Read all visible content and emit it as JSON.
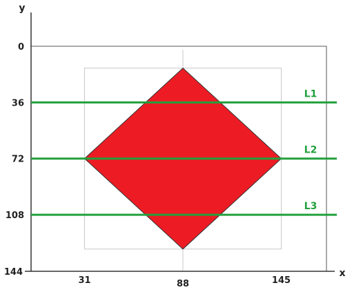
{
  "axes": {
    "x_label": "x",
    "y_label": "y"
  },
  "y_ticks": [
    {
      "value": 0,
      "label": "0"
    },
    {
      "value": 36,
      "label": "36"
    },
    {
      "value": 72,
      "label": "72"
    },
    {
      "value": 108,
      "label": "108"
    },
    {
      "value": 144,
      "label": "144"
    }
  ],
  "x_ticks": [
    {
      "value": 31,
      "label": "31"
    },
    {
      "value": 88,
      "label": "88"
    },
    {
      "value": 145,
      "label": "145"
    }
  ],
  "diamond": {
    "vertices": [
      {
        "x": 88,
        "y": 14
      },
      {
        "x": 145,
        "y": 72
      },
      {
        "x": 88,
        "y": 130
      },
      {
        "x": 31,
        "y": 72
      }
    ],
    "fill": "#ed1c24",
    "stroke": "#333333"
  },
  "bounding_box": {
    "x_min": 31,
    "x_max": 145,
    "y_min": 14,
    "y_max": 130,
    "color": "#c8c8c8"
  },
  "horizontal_lines": [
    {
      "label": "L1",
      "y": 36
    },
    {
      "label": "L2",
      "y": 72
    },
    {
      "label": "L3",
      "y": 108
    }
  ],
  "colors": {
    "line": "#22a03c",
    "axis": "#333333",
    "frame": "#555555",
    "center_guide": "#c8c8c8"
  }
}
